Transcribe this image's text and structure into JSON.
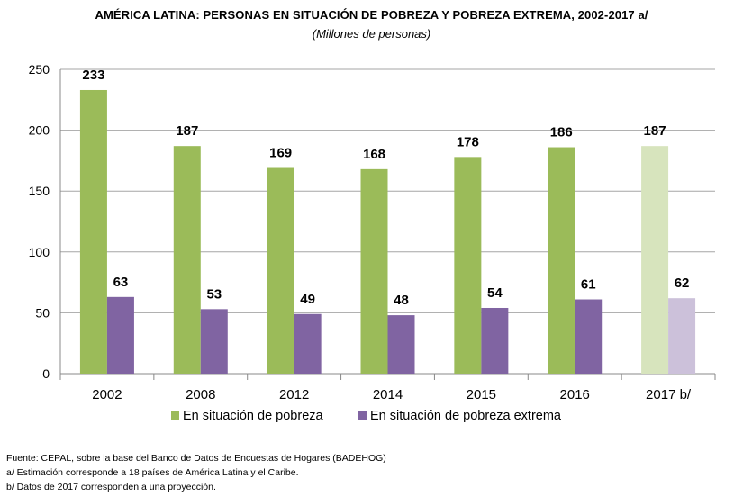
{
  "chart_data": {
    "type": "bar",
    "title": "AMÉRICA LATINA: PERSONAS EN SITUACIÓN DE POBREZA Y POBREZA EXTREMA, 2002-2017 a/",
    "subtitle": "(Millones de personas)",
    "categories": [
      "2002",
      "2008",
      "2012",
      "2014",
      "2015",
      "2016",
      "2017 b/"
    ],
    "series": [
      {
        "name": "En situación de pobreza",
        "values": [
          233,
          187,
          169,
          168,
          178,
          186,
          187
        ],
        "color": "#9bbb59",
        "projected_color": "#d7e4bd"
      },
      {
        "name": "En situación de pobreza extrema",
        "values": [
          63,
          53,
          49,
          48,
          54,
          61,
          62
        ],
        "color": "#8064a2",
        "projected_color": "#ccc1da"
      }
    ],
    "data_labels": [
      [
        "233",
        "187",
        "169",
        "168",
        "178",
        "186",
        "187"
      ],
      [
        "63",
        "53",
        "49",
        "48",
        "54",
        "61",
        "62"
      ]
    ],
    "projected_category": "2017 b/",
    "ylim": [
      0,
      250
    ],
    "yticks": [
      0,
      50,
      100,
      150,
      200,
      250
    ],
    "grid": true,
    "legend_position": "bottom",
    "xlabel": "",
    "ylabel": ""
  },
  "notes": [
    "Fuente: CEPAL, sobre la base del Banco de Datos de Encuestas de Hogares (BADEHOG)",
    "a/ Estimación corresponde a 18 países de América Latina y el Caribe.",
    "b/ Datos de 2017 corresponden a una proyección."
  ]
}
